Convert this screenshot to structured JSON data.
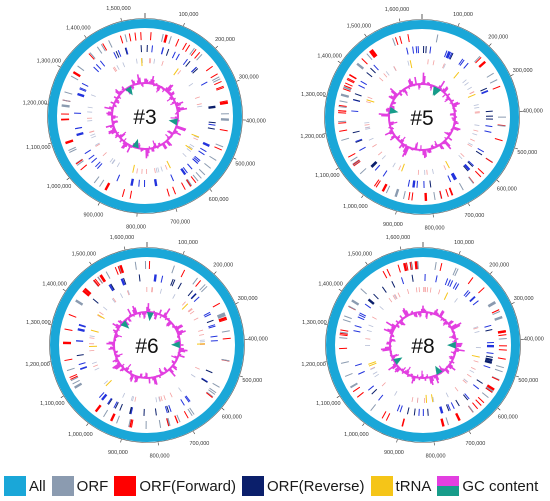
{
  "colors": {
    "all": "#1aa7d8",
    "orf": "#8b9bb0",
    "orf_forward": "#ff0000",
    "orf_reverse": "#0b1f6b",
    "trna": "#f5c518",
    "gc_positive": "#e23fe0",
    "gc_negative": "#179c8a",
    "ring_outline": "#555555",
    "tick_text": "#333333"
  },
  "maps": [
    {
      "label": "#3",
      "ticks": [
        "100,000",
        "200,000",
        "300,000",
        "400,000",
        "500,000",
        "600,000",
        "700,000",
        "800,000",
        "900,000",
        "1,000,000",
        "1,100,000",
        "1,200,000",
        "1,300,000",
        "1,400,000",
        "1,500,000"
      ]
    },
    {
      "label": "#5",
      "ticks": [
        "100,000",
        "200,000",
        "300,000",
        "400,000",
        "500,000",
        "600,000",
        "700,000",
        "800,000",
        "900,000",
        "1,000,000",
        "1,100,000",
        "1,200,000",
        "1,300,000",
        "1,400,000",
        "1,500,000",
        "1,600,000"
      ]
    },
    {
      "label": "#6",
      "ticks": [
        "100,000",
        "200,000",
        "300,000",
        "400,000",
        "500,000",
        "600,000",
        "700,000",
        "800,000",
        "900,000",
        "1,000,000",
        "1,100,000",
        "1,200,000",
        "1,300,000",
        "1,400,000",
        "1,500,000",
        "1,600,000"
      ]
    },
    {
      "label": "#8",
      "ticks": [
        "100,000",
        "200,000",
        "300,000",
        "400,000",
        "500,000",
        "600,000",
        "700,000",
        "800,000",
        "900,000",
        "1,000,000",
        "1,100,000",
        "1,200,000",
        "1,300,000",
        "1,400,000",
        "1,500,000",
        "1,600,000"
      ]
    }
  ],
  "legend": {
    "items": [
      {
        "label": "All",
        "color_key": "all"
      },
      {
        "label": "ORF",
        "color_key": "orf"
      },
      {
        "label": "ORF(Forward)",
        "color_key": "orf_forward"
      },
      {
        "label": "ORF(Reverse)",
        "color_key": "orf_reverse"
      },
      {
        "label": "tRNA",
        "color_key": "trna"
      },
      {
        "label": "GC content",
        "color_key": "gc"
      }
    ]
  }
}
